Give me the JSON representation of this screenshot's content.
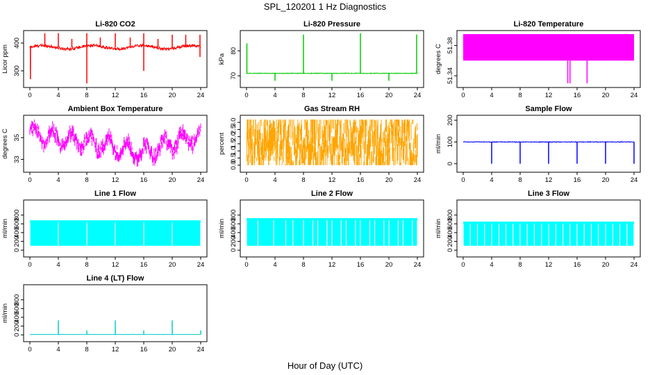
{
  "figure": {
    "title": "SPL_120201  1 Hz Diagnostics",
    "xlabel": "Hour of Day (UTC)"
  },
  "chart_data": [
    {
      "id": "co2",
      "type": "line",
      "title": "Li-820 CO2",
      "ylabel": "Licor ppm",
      "color": "#ff0000",
      "xlim": [
        0,
        24
      ],
      "x_ticks": [
        0,
        4,
        8,
        12,
        16,
        20,
        24
      ],
      "ylim": [
        255,
        435
      ],
      "y_ticks": [
        300,
        400
      ],
      "y_tick_labels": [
        "300",
        "400"
      ],
      "model": {
        "kind": "drift",
        "base": 385,
        "amp": 6,
        "noise": 10,
        "spikes": [
          [
            0.08,
            305,
            270
          ],
          [
            2.1,
            435
          ],
          [
            4.0,
            435
          ],
          [
            5.9,
            415
          ],
          [
            8.0,
            255,
            435
          ],
          [
            9.9,
            420
          ],
          [
            12.0,
            435
          ],
          [
            14.1,
            420
          ],
          [
            16.0,
            300,
            435
          ],
          [
            18.0,
            415
          ],
          [
            20.0,
            430
          ],
          [
            21.9,
            430
          ],
          [
            23.9,
            350,
            430
          ]
        ]
      }
    },
    {
      "id": "pressure",
      "type": "line",
      "title": "Li-820 Pressure",
      "ylabel": "kPa",
      "color": "#00cc00",
      "xlim": [
        0,
        24
      ],
      "x_ticks": [
        0,
        4,
        8,
        12,
        16,
        20,
        24
      ],
      "ylim": [
        67,
        87
      ],
      "y_ticks": [
        70,
        80
      ],
      "y_tick_labels": [
        "70",
        "80"
      ],
      "model": {
        "kind": "flatspike",
        "base": 71,
        "noise": 0.25,
        "spikes": [
          [
            0.05,
            83
          ],
          [
            4.0,
            68
          ],
          [
            8.0,
            86.5
          ],
          [
            12.0,
            68
          ],
          [
            16.0,
            87
          ],
          [
            20.0,
            68
          ],
          [
            23.9,
            86.5
          ]
        ]
      }
    },
    {
      "id": "licortemp",
      "type": "band",
      "title": "Li-820 Temperature",
      "ylabel": "degrees C",
      "color": "#ff00ff",
      "xlim": [
        0,
        24
      ],
      "x_ticks": [
        0,
        4,
        8,
        12,
        16,
        20,
        24
      ],
      "ylim": [
        51.33,
        51.396
      ],
      "y_ticks": [
        51.34,
        51.38
      ],
      "y_tick_labels": [
        "51.34",
        "51.38"
      ],
      "band": [
        51.36,
        51.395
      ],
      "dips": [
        [
          14.7,
          51.33
        ],
        [
          15.0,
          51.33
        ],
        [
          17.4,
          51.33
        ]
      ]
    },
    {
      "id": "ambient",
      "type": "line",
      "title": "Ambient Box Temperature",
      "ylabel": "degrees C",
      "color": "#ff00ff",
      "xlim": [
        0,
        24
      ],
      "x_ticks": [
        0,
        4,
        8,
        12,
        16,
        20,
        24
      ],
      "ylim": [
        32.2,
        36.8
      ],
      "y_ticks": [
        33,
        35
      ],
      "y_tick_labels": [
        "33",
        "35"
      ],
      "model": {
        "kind": "wave",
        "base": 34.4,
        "amp": 0.7,
        "period": 2.6,
        "noise": 0.5,
        "anchors": [
          [
            0,
            35.5
          ],
          [
            4,
            34.8
          ],
          [
            8,
            34.6
          ],
          [
            12,
            34.2
          ],
          [
            16,
            33.6
          ],
          [
            20,
            34.5
          ],
          [
            24,
            35.3
          ]
        ]
      }
    },
    {
      "id": "rh",
      "type": "line",
      "title": "Gas Stream RH",
      "ylabel": "percent",
      "color": "#ffa500",
      "xlim": [
        0,
        24
      ],
      "x_ticks": [
        0,
        4,
        8,
        12,
        16,
        20,
        24
      ],
      "ylim": [
        -0.2,
        3.3
      ],
      "y_ticks": [
        0.0,
        0.5,
        1.0,
        1.5,
        2.0,
        2.5,
        3.0
      ],
      "y_tick_labels": [
        "0.0",
        "0.5",
        "1.0",
        "1.5",
        "2.0",
        "2.5",
        "3.0"
      ],
      "model": {
        "kind": "noise",
        "base": 1.5,
        "noise": 1.6,
        "clip": [
          0.0,
          3.2
        ]
      }
    },
    {
      "id": "sampleflow",
      "type": "line",
      "title": "Sample Flow",
      "ylabel": "ml/min",
      "color": "#0000ff",
      "xlim": [
        0,
        24
      ],
      "x_ticks": [
        0,
        4,
        8,
        12,
        16,
        20,
        24
      ],
      "ylim": [
        -20,
        210
      ],
      "y_ticks": [
        0,
        100,
        200
      ],
      "y_tick_labels": [
        "0",
        "100",
        "200"
      ],
      "model": {
        "kind": "flatspike",
        "base": 100,
        "noise": 3,
        "spikes": [
          [
            4.0,
            0
          ],
          [
            8.0,
            0
          ],
          [
            12.0,
            0
          ],
          [
            16.0,
            0
          ],
          [
            20.0,
            0
          ],
          [
            24.0,
            0
          ]
        ]
      }
    },
    {
      "id": "line1",
      "type": "area",
      "title": "Line 1 Flow",
      "ylabel": "ml/min",
      "color": "#00ffff",
      "xlim": [
        0,
        24
      ],
      "x_ticks": [
        0,
        4,
        8,
        12,
        16,
        20,
        24
      ],
      "ylim": [
        -60,
        1080
      ],
      "y_ticks": [
        0,
        200,
        400,
        600,
        800
      ],
      "y_tick_labels": [
        "0",
        "200",
        "400",
        "600",
        "800"
      ],
      "fill_range": [
        100,
        680
      ],
      "tall": [
        8.0,
        12.0,
        16.0
      ],
      "gaps": [
        0.0,
        4.0,
        8.0,
        12.0,
        16.0,
        20.0,
        24.0
      ]
    },
    {
      "id": "line2",
      "type": "area",
      "title": "Line 2 Flow",
      "ylabel": "ml/min",
      "color": "#00ffff",
      "xlim": [
        0,
        24
      ],
      "x_ticks": [
        0,
        4,
        8,
        12,
        16,
        20,
        24
      ],
      "ylim": [
        -60,
        1080
      ],
      "y_ticks": [
        0,
        200,
        400,
        600,
        800
      ],
      "y_tick_labels": [
        "0",
        "200",
        "400",
        "600",
        "800"
      ],
      "fill_range": [
        100,
        730
      ],
      "tall": [],
      "gaps": [
        0.0,
        1.6,
        3.8,
        5.5,
        6.5,
        8.0,
        9.3,
        10.0,
        11.3,
        12.0,
        13.3,
        14.0,
        15.3,
        16.0,
        17.3,
        18.0,
        19.3,
        20.0,
        21.3,
        22.0,
        23.3,
        24.0
      ]
    },
    {
      "id": "line3",
      "type": "area",
      "title": "Line 3 Flow",
      "ylabel": "ml/min",
      "color": "#00ffff",
      "xlim": [
        0,
        24
      ],
      "x_ticks": [
        0,
        4,
        8,
        12,
        16,
        20,
        24
      ],
      "ylim": [
        -60,
        1080
      ],
      "y_ticks": [
        0,
        200,
        400,
        600,
        800
      ],
      "y_tick_labels": [
        "0",
        "200",
        "400",
        "600",
        "800"
      ],
      "fill_range": [
        100,
        650
      ],
      "tall": [],
      "gaps": [
        0.0,
        1.0,
        2.0,
        3.0,
        4.0,
        5.0,
        6.0,
        7.0,
        8.0,
        9.0,
        10.0,
        11.0,
        12.0,
        13.0,
        14.0,
        15.0,
        16.0,
        17.0,
        18.0,
        19.0,
        20.0,
        21.0,
        22.0,
        23.0,
        24.0
      ]
    },
    {
      "id": "line4",
      "type": "line",
      "title": "Line 4 (LT) Flow",
      "ylabel": "ml/min",
      "color": "#00cccc",
      "xlim": [
        0,
        24
      ],
      "x_ticks": [
        0,
        4,
        8,
        12,
        16,
        20,
        24
      ],
      "ylim": [
        -60,
        1080
      ],
      "y_ticks": [
        0,
        200,
        400,
        600,
        800
      ],
      "y_tick_labels": [
        "0",
        "200",
        "400",
        "600",
        "800"
      ],
      "model": {
        "kind": "flatspike",
        "base": 10,
        "noise": 3,
        "spikes": [
          [
            4.0,
            330
          ],
          [
            8.0,
            100
          ],
          [
            12.0,
            330
          ],
          [
            16.0,
            100
          ],
          [
            20.0,
            330
          ],
          [
            24.0,
            100
          ]
        ]
      }
    }
  ]
}
